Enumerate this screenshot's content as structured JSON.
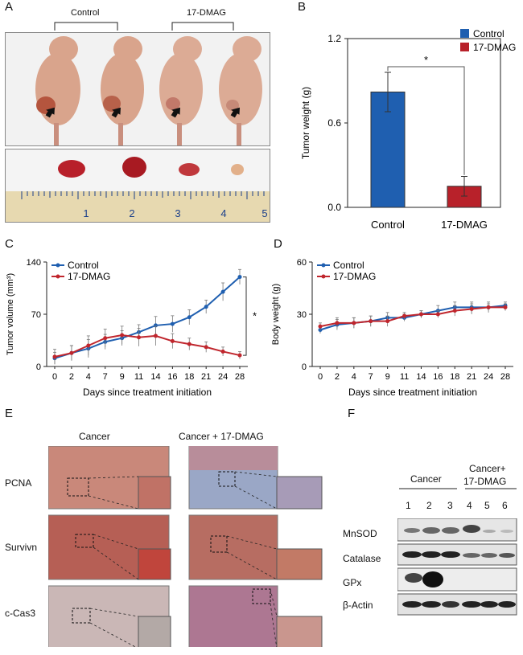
{
  "panels": {
    "A": {
      "letter": "A",
      "groups": [
        "Control",
        "17-DMAG"
      ],
      "ruler_numbers": [
        "1",
        "2",
        "3",
        "4",
        "5"
      ]
    },
    "B": {
      "letter": "B"
    },
    "C": {
      "letter": "C"
    },
    "D": {
      "letter": "D"
    },
    "E": {
      "letter": "E",
      "columns": [
        "Cancer",
        "Cancer + 17-DMAG"
      ],
      "rows": [
        "PCNA",
        "Survivn",
        "c-Cas3"
      ]
    },
    "F": {
      "letter": "F",
      "groups": [
        "Cancer",
        "Cancer+",
        "17-DMAG"
      ],
      "lanes": [
        "1",
        "2",
        "3",
        "4",
        "5",
        "6"
      ],
      "proteins": [
        "MnSOD",
        "Catalase",
        "GPx",
        "β-Actin"
      ]
    }
  },
  "colors": {
    "control": "#1f5fb0",
    "dmag_bar": "#b8212a",
    "dmag_line": "#c0262d"
  },
  "chart_data": [
    {
      "id": "B",
      "type": "bar",
      "categories": [
        "Control",
        "17-DMAG"
      ],
      "values": [
        0.82,
        0.15
      ],
      "errors": [
        0.14,
        0.07
      ],
      "ylabel": "Tumor weight (g)",
      "ylim": [
        0,
        1.2
      ],
      "yticks": [
        "0.0",
        "0.6",
        "1.2"
      ],
      "legend": [
        "Control",
        "17-DMAG"
      ],
      "significance": "*"
    },
    {
      "id": "C",
      "type": "line",
      "x": [
        "0",
        "2",
        "4",
        "7",
        "9",
        "11",
        "14",
        "16",
        "18",
        "21",
        "24",
        "28"
      ],
      "series": [
        {
          "name": "Control",
          "values": [
            11,
            18,
            24,
            33,
            38,
            46,
            55,
            57,
            66,
            80,
            100,
            120
          ],
          "errors": [
            8,
            10,
            12,
            10,
            10,
            10,
            12,
            11,
            10,
            9,
            12,
            10
          ]
        },
        {
          "name": "17-DMAG",
          "values": [
            13,
            18,
            28,
            38,
            42,
            39,
            41,
            34,
            30,
            26,
            20,
            15
          ],
          "errors": [
            10,
            10,
            13,
            12,
            12,
            12,
            13,
            10,
            8,
            7,
            6,
            5
          ]
        }
      ],
      "ylabel": "Tumor volume (mm³)",
      "xlabel": "Days since treatment initiation",
      "ylim": [
        0,
        140
      ],
      "yticks": [
        "0",
        "70",
        "140"
      ],
      "significance": "*"
    },
    {
      "id": "D",
      "type": "line",
      "x": [
        "0",
        "2",
        "4",
        "7",
        "9",
        "11",
        "14",
        "16",
        "18",
        "21",
        "24",
        "28"
      ],
      "series": [
        {
          "name": "Control",
          "values": [
            21,
            24,
            25,
            26,
            28,
            28,
            30,
            32,
            34,
            34,
            34,
            35
          ],
          "errors": [
            2,
            3,
            3,
            3,
            3,
            2,
            2,
            3,
            3,
            3,
            2,
            2
          ]
        },
        {
          "name": "17-DMAG",
          "values": [
            23,
            25,
            25,
            26,
            26,
            29,
            30,
            30,
            32,
            33,
            34,
            34
          ],
          "errors": [
            2,
            3,
            3,
            3,
            3,
            2,
            2,
            2,
            3,
            3,
            3,
            2
          ]
        }
      ],
      "ylabel": "Body weight (g)",
      "xlabel": "Days since treatment initiation",
      "ylim": [
        0,
        60
      ],
      "yticks": [
        "0",
        "30",
        "60"
      ]
    }
  ]
}
